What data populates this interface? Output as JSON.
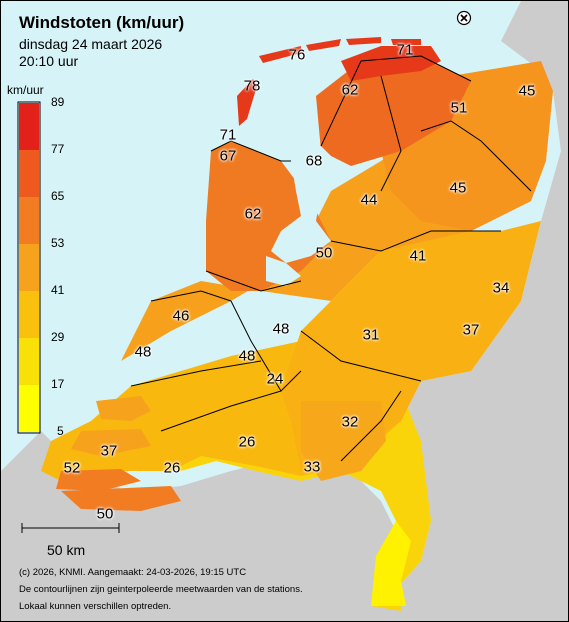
{
  "map": {
    "title": "Windstoten (km/uur)",
    "date": "dinsdag 24 maart 2026",
    "time": "20:10 uur",
    "legend": {
      "unit": "km/uur",
      "ticks": [
        "89",
        "77",
        "65",
        "53",
        "41",
        "29",
        "17",
        "5"
      ],
      "colors": [
        "#e2221a",
        "#ee5a1e",
        "#f27c22",
        "#f6a21c",
        "#f9c10d",
        "#f9e007",
        "#ffff00"
      ]
    },
    "scale_label": "50 km",
    "footer": [
      "(c) 2026, KNMI. Aangemaakt: 24-03-2026, 19:15 UTC",
      "De contourlijnen zijn geinterpoleerde meetwaarden van de stations.",
      "Lokaal kunnen verschillen optreden."
    ],
    "stations": [
      {
        "v": "76"
      },
      {
        "v": "71"
      },
      {
        "v": "78"
      },
      {
        "v": "62"
      },
      {
        "v": "45"
      },
      {
        "v": "51"
      },
      {
        "v": "71"
      },
      {
        "v": "67"
      },
      {
        "v": "68"
      },
      {
        "v": "44"
      },
      {
        "v": "45"
      },
      {
        "v": "62"
      },
      {
        "v": "50"
      },
      {
        "v": "41"
      },
      {
        "v": "34"
      },
      {
        "v": "46"
      },
      {
        "v": "48"
      },
      {
        "v": "31"
      },
      {
        "v": "37"
      },
      {
        "v": "48"
      },
      {
        "v": "48"
      },
      {
        "v": "24"
      },
      {
        "v": "32"
      },
      {
        "v": "26"
      },
      {
        "v": "37"
      },
      {
        "v": "33"
      },
      {
        "v": "52"
      },
      {
        "v": "26"
      },
      {
        "v": "50"
      }
    ],
    "sea_color": "#d6f3f7",
    "land_outside_color": "#cccccc"
  }
}
